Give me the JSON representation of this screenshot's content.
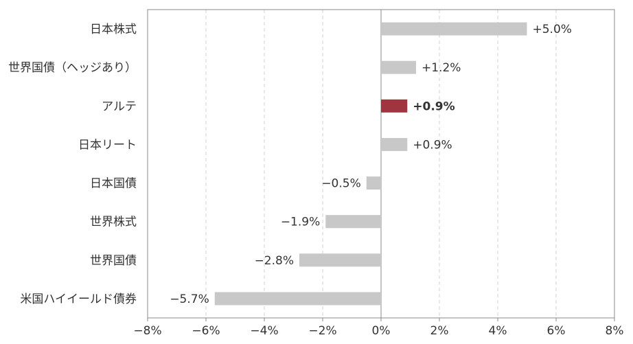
{
  "chart_data": {
    "type": "bar",
    "orientation": "horizontal",
    "categories": [
      "日本株式",
      "世界国債（ヘッジあり）",
      "アルテ",
      "日本リート",
      "日本国債",
      "世界株式",
      "世界国債",
      "米国ハイイールド債券"
    ],
    "values": [
      5.0,
      1.2,
      0.9,
      0.9,
      -0.5,
      -1.9,
      -2.8,
      -5.7
    ],
    "value_labels": [
      "+5.0%",
      "+1.2%",
      "+0.9%",
      "+0.9%",
      "−0.5%",
      "−1.9%",
      "−2.8%",
      "−5.7%"
    ],
    "highlight_index": 2,
    "xlim": [
      -8,
      8
    ],
    "xticks": [
      -8,
      -6,
      -4,
      -2,
      0,
      2,
      4,
      6,
      8
    ],
    "xtick_labels": [
      "−8%",
      "−6%",
      "−4%",
      "−2%",
      "0%",
      "2%",
      "4%",
      "6%",
      "8%"
    ],
    "title": "",
    "xlabel": "",
    "ylabel": "",
    "grid": "vertical dashed",
    "colors": {
      "bar": "#c8c8c8",
      "highlight_bar": "#a0353f",
      "highlight_text": "#a0353f",
      "grid": "#d0d0d0",
      "axis": "#888888",
      "text": "#333333"
    }
  }
}
